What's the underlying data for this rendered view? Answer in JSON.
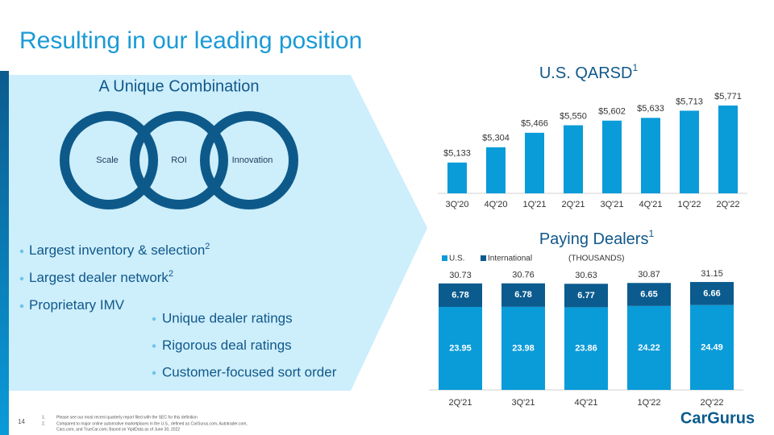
{
  "title": "Resulting in our leading position",
  "combination": {
    "title": "A Unique Combination",
    "circles": [
      "Scale",
      "ROI",
      "Innovation"
    ]
  },
  "bullets_left": [
    "Largest inventory & selection",
    "Largest dealer network",
    "Proprietary IMV"
  ],
  "bullets_left_sup": [
    "2",
    "2",
    null
  ],
  "bullets_right": [
    "Unique dealer ratings",
    "Rigorous deal ratings",
    "Customer-focused sort order"
  ],
  "page_number": "14",
  "footnotes": [
    "1.",
    "Please see our most recent quarterly report filed with the SEC for this definition",
    "2.",
    "Compared to major online automotive marketplaces in the U.S., defined as CarGurus.com, Autotrader.com,",
    "Cars.com, and TrueCar.com; Based on YipitData as of June 30, 2022"
  ],
  "logo": "CarGurus",
  "chart_data": [
    {
      "type": "bar",
      "title": "U.S. QARSD",
      "title_sup": "1",
      "categories": [
        "3Q'20",
        "4Q'20",
        "1Q'21",
        "2Q'21",
        "3Q'21",
        "4Q'21",
        "1Q'22",
        "2Q'22"
      ],
      "values": [
        5133,
        5304,
        5466,
        5550,
        5602,
        5633,
        5713,
        5771
      ],
      "value_labels": [
        "$5,133",
        "$5,304",
        "$5,466",
        "$5,550",
        "$5,602",
        "$5,633",
        "$5,713",
        "$5,771"
      ],
      "color": "#0a9bd9"
    },
    {
      "type": "stacked_bar",
      "title": "Paying Dealers",
      "title_sup": "1",
      "subtitle": "(THOUSANDS)",
      "categories": [
        "2Q'21",
        "3Q'21",
        "4Q'21",
        "1Q'22",
        "2Q'22"
      ],
      "series": [
        {
          "name": "U.S.",
          "color": "#0a9bd9",
          "values": [
            23.95,
            23.98,
            23.86,
            24.22,
            24.49
          ]
        },
        {
          "name": "International",
          "color": "#0b5b8e",
          "values": [
            6.78,
            6.78,
            6.77,
            6.65,
            6.66
          ]
        }
      ],
      "totals": [
        30.73,
        30.76,
        30.63,
        30.87,
        31.15
      ]
    }
  ]
}
